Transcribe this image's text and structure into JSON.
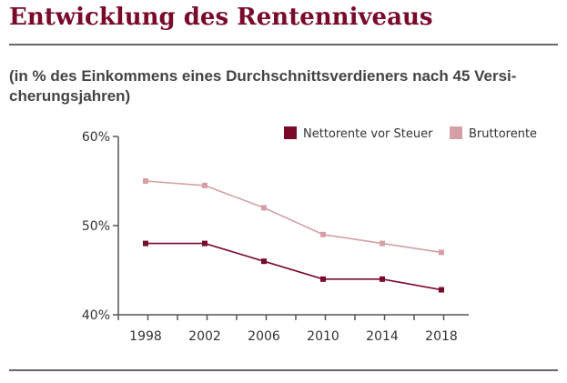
{
  "header": {
    "title": "Entwicklung des Rentenniveaus",
    "subtitle_line1": "(in % des Einkommens eines Durchschnittsverdieners nach 45 Versi-",
    "subtitle_line2": "cherungsjahren)"
  },
  "chart_data": {
    "type": "line",
    "title": "Entwicklung des Rentenniveaus",
    "subtitle": "(in % des Einkommens eines Durchschnittsverdieners nach 45 Versicherungsjahren)",
    "xlabel": "",
    "ylabel": "",
    "x": [
      1998,
      2002,
      2006,
      2010,
      2014,
      2018
    ],
    "x_tick_labels": [
      "1998",
      "2002",
      "2006",
      "2010",
      "2014",
      "2018"
    ],
    "ylim": [
      40,
      60
    ],
    "y_ticks": [
      40,
      50,
      60
    ],
    "y_tick_labels": [
      "40%",
      "50%",
      "60%"
    ],
    "grid": false,
    "legend_position": "top-right",
    "series": [
      {
        "name": "Nettorente vor Steuer",
        "color": "#7a0a2a",
        "values": [
          48,
          48,
          46,
          44,
          44,
          42.8
        ]
      },
      {
        "name": "Bruttorente",
        "color": "#d4a0a6",
        "values": [
          55,
          54.5,
          52,
          49,
          48,
          47
        ]
      }
    ]
  }
}
